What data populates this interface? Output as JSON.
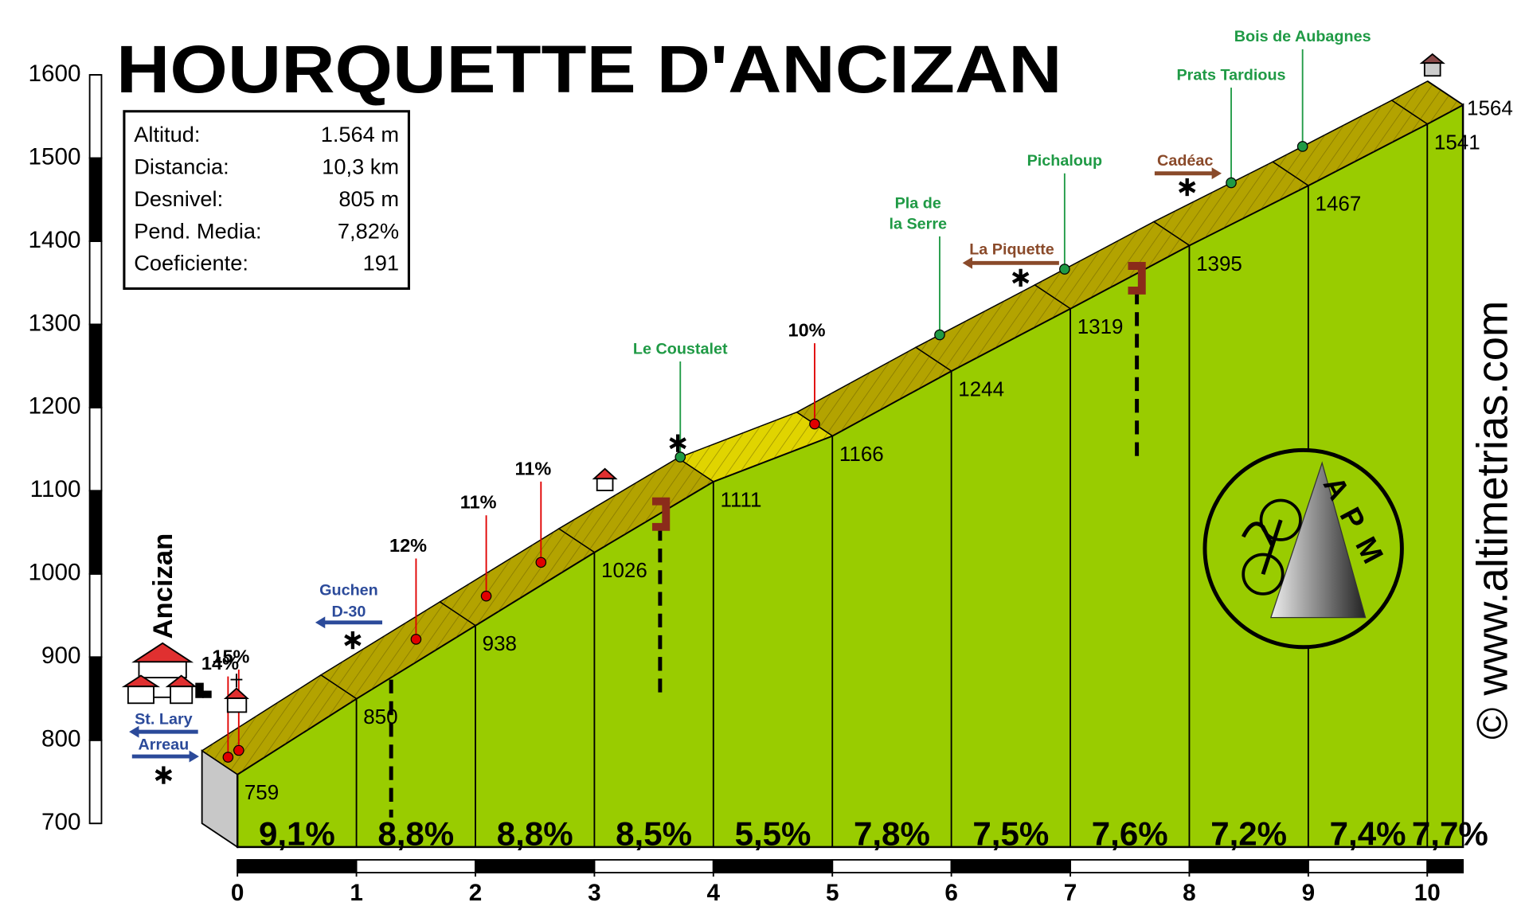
{
  "chart_data": {
    "type": "profile",
    "title": "HOURQUETTE D'ANCIZAN",
    "stats": [
      {
        "label": "Altitud:",
        "value": "1.564 m"
      },
      {
        "label": "Distancia:",
        "value": "10,3 km"
      },
      {
        "label": "Desnivel:",
        "value": "805 m"
      },
      {
        "label": "Pend. Media:",
        "value": "7,82%"
      },
      {
        "label": "Coeficiente:",
        "value": "191"
      }
    ],
    "x": [
      0,
      1,
      2,
      3,
      4,
      5,
      6,
      7,
      8,
      9,
      10,
      10.3
    ],
    "values": [
      759,
      850,
      938,
      1026,
      1111,
      1166,
      1244,
      1319,
      1395,
      1467,
      1541,
      1564
    ],
    "segments": {
      "values": [
        9.1,
        8.8,
        8.8,
        8.5,
        5.5,
        7.8,
        7.5,
        7.6,
        7.2,
        7.4,
        7.7
      ],
      "value_labels": [
        "9,1%",
        "8,8%",
        "8,8%",
        "8,5%",
        "5,5%",
        "7,8%",
        "7,5%",
        "7,6%",
        "7,2%",
        "7,4%",
        "7,7%"
      ]
    },
    "peaks": {
      "x": [
        0.07,
        0.16,
        1.65,
        2.24,
        2.7,
        5.0
      ],
      "values": [
        14,
        15,
        12,
        11,
        11,
        10
      ],
      "value_labels": [
        "14%",
        "15%",
        "12%",
        "11%",
        "11%",
        "10%"
      ]
    },
    "places": {
      "names": [
        [
          "Le Coustalet"
        ],
        [
          "Pla de",
          "la Serre"
        ],
        [
          "Pichaloup"
        ],
        [
          "Prats Tardious"
        ],
        [
          "Bois de Aubagnes"
        ]
      ],
      "x": [
        4.02,
        6.2,
        7.25,
        8.65,
        9.25
      ]
    },
    "roads": [
      [
        "Guchen",
        "D-30"
      ],
      [
        "St. Lary"
      ],
      [
        "Arreau"
      ],
      [
        "La Piquette"
      ],
      [
        "Cadéac"
      ]
    ],
    "town": "Ancizan",
    "credit": "© www.altimetrias.com",
    "logo": "APM",
    "xlim": [
      0,
      10.3
    ],
    "xticks": [
      0,
      1,
      2,
      3,
      4,
      5,
      6,
      7,
      8,
      9,
      10
    ],
    "ylim": [
      700,
      1600
    ],
    "yticks": [
      700,
      800,
      900,
      1000,
      1100,
      1200,
      1300,
      1400,
      1500,
      1600
    ],
    "color": "#99cc00",
    "road_color": "#b3a300",
    "easy_road_color": "#e0d400",
    "peak_color": "#e00000",
    "place_color": "#1f9a45"
  }
}
